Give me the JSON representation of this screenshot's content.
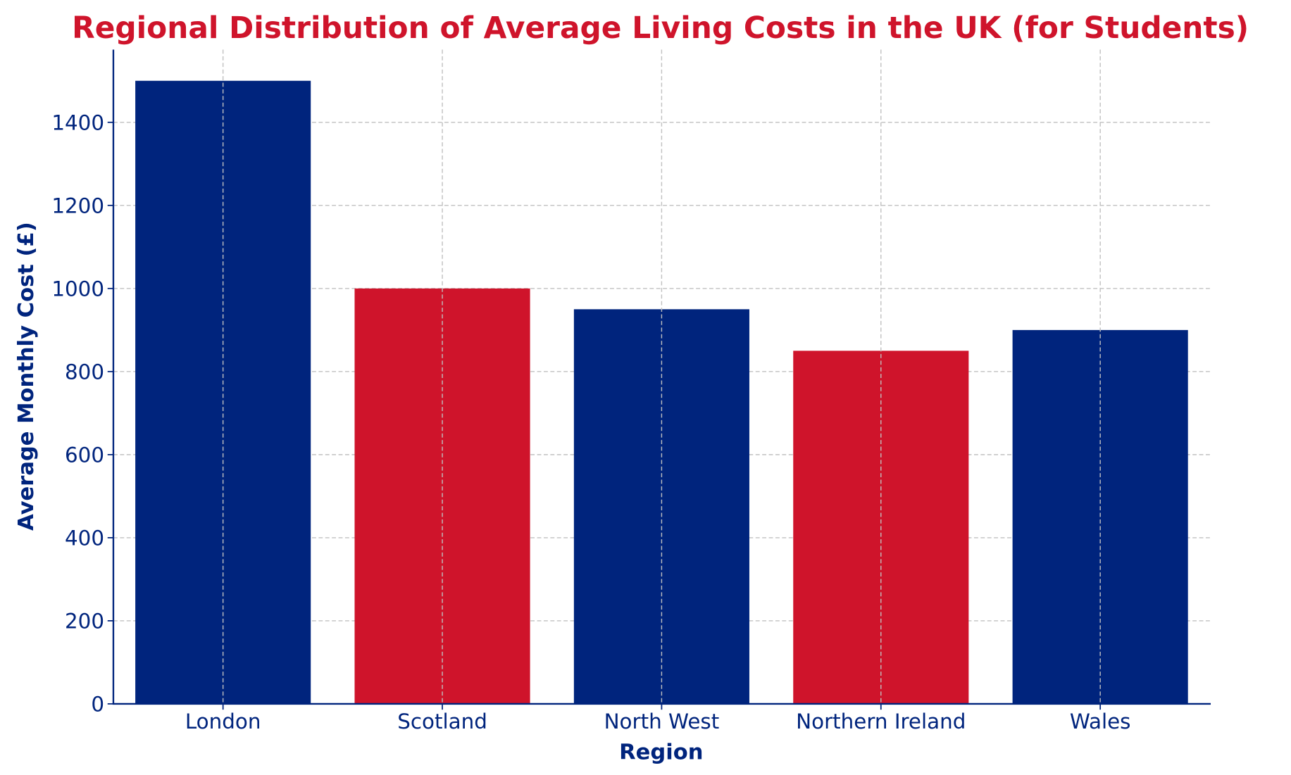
{
  "chart_data": {
    "type": "bar",
    "title": "Regional Distribution of Average Living Costs in the UK (for Students)",
    "xlabel": "Region",
    "ylabel": "Average Monthly Cost (£)",
    "categories": [
      "London",
      "Scotland",
      "North West",
      "Northern Ireland",
      "Wales"
    ],
    "values": [
      1500,
      1000,
      950,
      850,
      900
    ],
    "bar_colors": [
      "#00247D",
      "#CF142B",
      "#00247D",
      "#CF142B",
      "#00247D"
    ],
    "ylim": [
      0,
      1575
    ],
    "yticks": [
      0,
      200,
      400,
      600,
      800,
      1000,
      1200,
      1400
    ],
    "grid": true,
    "title_color": "#CF142B",
    "text_color": "#00247D"
  }
}
